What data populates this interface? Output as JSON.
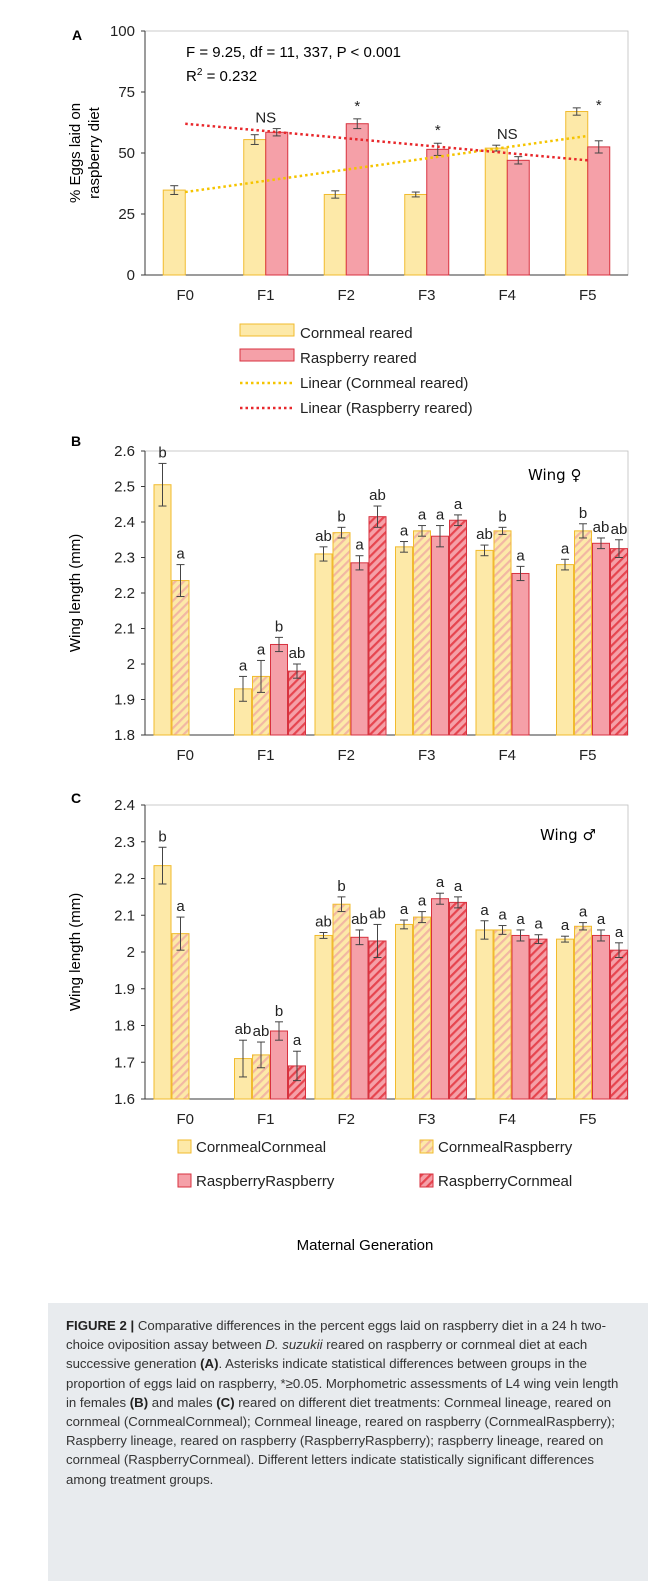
{
  "figure": {
    "panelA": {
      "letter": "A",
      "stats_line1": "F = 9.25, df = 11, 337, P < 0.001",
      "stats_r2_prefix": "R",
      "stats_r2_sup": "2",
      "stats_r2_value": " = 0.232"
    },
    "panelB": {
      "letter": "B",
      "annotation": "Wing ♀"
    },
    "panelC": {
      "letter": "C",
      "annotation": "Wing ♂"
    },
    "x_title": "Maternal Generation"
  },
  "colors": {
    "cornmeal_fill": "#fde9a8",
    "cornmeal_edge": "#f1bb2e",
    "raspberry_fill": "#f5a0a8",
    "raspberry_edge": "#d8323f",
    "cornmeal_trend": "#f5c400",
    "raspberry_trend": "#e8282c",
    "axis": "#3a3a3a",
    "caption_bg": "#e8ebee"
  },
  "chart_data": [
    {
      "type": "bar",
      "panel": "A",
      "categories": [
        "F0",
        "F1",
        "F2",
        "F3",
        "F4",
        "F5"
      ],
      "ylabel": "% Eggs laid on raspberry diet",
      "ylim": [
        0,
        100
      ],
      "yticks": [
        0,
        25,
        50,
        75,
        100
      ],
      "grid": false,
      "legend_position": "bottom",
      "series": [
        {
          "name": "Cornmeal reared",
          "values": [
            34.8,
            55.5,
            33,
            33,
            52,
            67
          ],
          "errors": [
            1.8,
            2,
            1.5,
            1,
            1.2,
            1.5
          ]
        },
        {
          "name": "Raspberry reared",
          "values": [
            null,
            58.5,
            62,
            51.5,
            47,
            52.5
          ],
          "errors": [
            null,
            1.5,
            2,
            2.5,
            1.5,
            2.5
          ]
        }
      ],
      "trendlines": [
        {
          "name": "Linear (Cornmeal reared)",
          "start": 34,
          "end": 57
        },
        {
          "name": "Linear (Raspberry reared)",
          "start": 62,
          "end": 47
        }
      ],
      "significance": [
        "",
        "NS",
        "*",
        "*",
        "NS",
        "*"
      ]
    },
    {
      "type": "bar",
      "panel": "B",
      "categories": [
        "F0",
        "F1",
        "F2",
        "F3",
        "F4",
        "F5"
      ],
      "ylabel": "Wing length (mm)",
      "ylim": [
        1.8,
        2.6
      ],
      "yticks": [
        1.8,
        1.9,
        2,
        2.1,
        2.2,
        2.3,
        2.4,
        2.5,
        2.6
      ],
      "grid": false,
      "series": [
        {
          "name": "CornmealCornmeal",
          "values": [
            2.505,
            1.93,
            2.31,
            2.33,
            2.32,
            2.28
          ],
          "errors": [
            0.06,
            0.035,
            0.02,
            0.015,
            0.015,
            0.015
          ],
          "letters": [
            "b",
            "a",
            "ab",
            "a",
            "ab",
            "a"
          ]
        },
        {
          "name": "CornmealRaspberry",
          "values": [
            2.235,
            1.965,
            2.37,
            2.375,
            2.375,
            2.375
          ],
          "errors": [
            0.045,
            0.045,
            0.015,
            0.015,
            0.01,
            0.02
          ],
          "letters": [
            "a",
            "a",
            "b",
            "a",
            "b",
            "b"
          ]
        },
        {
          "name": "RaspberryRaspberry",
          "values": [
            null,
            2.055,
            2.285,
            2.36,
            2.255,
            2.34
          ],
          "errors": [
            null,
            0.02,
            0.02,
            0.03,
            0.02,
            0.015
          ],
          "letters": [
            "",
            "b",
            "a",
            "a",
            "a",
            "ab"
          ]
        },
        {
          "name": "RaspberryCornmeal",
          "values": [
            null,
            1.98,
            2.415,
            2.405,
            null,
            2.325
          ],
          "errors": [
            null,
            0.02,
            0.03,
            0.015,
            null,
            0.025
          ],
          "letters": [
            "",
            "ab",
            "ab",
            "a",
            "",
            "ab"
          ]
        }
      ]
    },
    {
      "type": "bar",
      "panel": "C",
      "categories": [
        "F0",
        "F1",
        "F2",
        "F3",
        "F4",
        "F5"
      ],
      "ylabel": "Wing length (mm)",
      "xlabel": "Maternal Generation",
      "ylim": [
        1.6,
        2.4
      ],
      "yticks": [
        1.6,
        1.7,
        1.8,
        1.9,
        2,
        2.1,
        2.2,
        2.3,
        2.4
      ],
      "grid": false,
      "legend_position": "bottom",
      "series": [
        {
          "name": "CornmealCornmeal",
          "values": [
            2.235,
            1.71,
            2.045,
            2.075,
            2.06,
            2.035
          ],
          "errors": [
            0.05,
            0.05,
            0.008,
            0.012,
            0.025,
            0.008
          ],
          "letters": [
            "b",
            "ab",
            "ab",
            "a",
            "a",
            "a"
          ]
        },
        {
          "name": "CornmealRaspberry",
          "values": [
            2.05,
            1.72,
            2.13,
            2.095,
            2.06,
            2.07
          ],
          "errors": [
            0.045,
            0.035,
            0.02,
            0.015,
            0.012,
            0.01
          ],
          "letters": [
            "a",
            "ab",
            "b",
            "a",
            "a",
            "a"
          ]
        },
        {
          "name": "RaspberryRaspberry",
          "values": [
            null,
            1.785,
            2.04,
            2.145,
            2.045,
            2.045
          ],
          "errors": [
            null,
            0.025,
            0.02,
            0.015,
            0.015,
            0.015
          ],
          "letters": [
            "",
            "b",
            "ab",
            "a",
            "a",
            "a"
          ]
        },
        {
          "name": "RaspberryCornmeal",
          "values": [
            null,
            1.69,
            2.03,
            2.135,
            2.035,
            2.005
          ],
          "errors": [
            null,
            0.04,
            0.045,
            0.015,
            0.012,
            0.02
          ],
          "letters": [
            "",
            "a",
            "ab",
            "a",
            "a",
            "a"
          ]
        }
      ]
    }
  ],
  "caption": {
    "label": "FIGURE 2 |",
    "t1": " Comparative differences in the percent eggs laid on raspberry diet in a 24 h two-choice oviposition assay between ",
    "species": "D. suzukii",
    "t2": " reared on raspberry or cornmeal diet at each successive generation ",
    "ref_a": "(A)",
    "t3": ". Asterisks indicate statistical differences between groups in the proportion of eggs laid on raspberry, *≥0.05. Morphometric assessments of L4 wing vein length in females ",
    "ref_b": "(B)",
    "t4": " and males ",
    "ref_c": "(C)",
    "t5": " reared on different diet treatments: Cornmeal lineage, reared on cornmeal (CornmealCornmeal); Cornmeal lineage, reared on raspberry (CornmealRaspberry); Raspberry lineage, reared on raspberry (RaspberryRaspberry); raspberry lineage, reared on cornmeal (RaspberryCornmeal). Different letters indicate statistically significant differences among treatment groups."
  }
}
